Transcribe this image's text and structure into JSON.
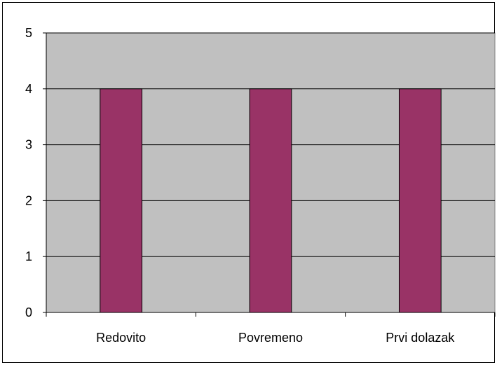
{
  "chart_data": {
    "type": "bar",
    "categories": [
      "Redovito",
      "Povremeno",
      "Prvi dolazak"
    ],
    "values": [
      4,
      4,
      4
    ],
    "title": "",
    "xlabel": "",
    "ylabel": "",
    "ylim": [
      0,
      5
    ],
    "yticks": [
      "0",
      "1",
      "2",
      "3",
      "4",
      "5"
    ],
    "grid": true,
    "legend": "none",
    "colors": {
      "bar": "#993366",
      "plot_background": "#c0c0c0",
      "gridline": "#000000",
      "chart_background": "#ffffff",
      "border": "#000000"
    }
  }
}
